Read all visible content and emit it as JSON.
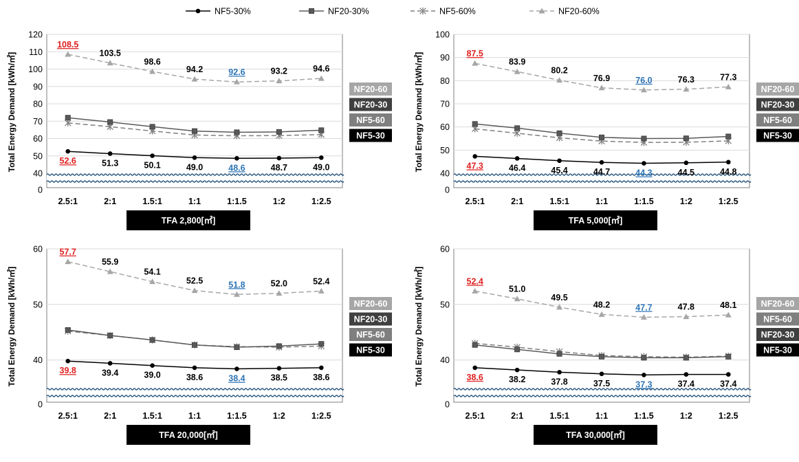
{
  "legend": [
    {
      "name": "NF5-30%",
      "series_key": "NF5-30"
    },
    {
      "name": "NF20-30%",
      "series_key": "NF20-30"
    },
    {
      "name": "NF5-60%",
      "series_key": "NF5-60"
    },
    {
      "name": "NF20-60%",
      "series_key": "NF20-60"
    }
  ],
  "series_styles": {
    "NF5-30": {
      "color": "#000000",
      "marker": "circle",
      "dash": "solid"
    },
    "NF20-30": {
      "color": "#595959",
      "marker": "square",
      "dash": "solid"
    },
    "NF5-60": {
      "color": "#7f7f7f",
      "marker": "asterisk",
      "dash": "dashed"
    },
    "NF20-60": {
      "color": "#a6a6a6",
      "marker": "triangle",
      "dash": "dashed"
    }
  },
  "label_colors": {
    "max": "#e02020",
    "min": "#2e75b6",
    "normal": "#000000"
  },
  "tag_colors": {
    "NF20-60": "#a6a6a6",
    "NF20-30": "#404040",
    "NF5-60": "#7f7f7f",
    "NF5-30": "#000000"
  },
  "chart_data": [
    {
      "type": "line",
      "title": "TFA 2,800[㎡]",
      "ylabel": "Total Energy Demand [kWh/㎡]",
      "categories": [
        "2.5:1",
        "2:1",
        "1.5:1",
        "1:1",
        "1:1.5",
        "1:2",
        "1:2.5"
      ],
      "yticks": [
        40,
        50,
        60,
        70,
        80,
        90,
        100,
        110,
        120
      ],
      "ylim": [
        40,
        120
      ],
      "axis_break_tick": 0,
      "grid": true,
      "side_tags": [
        "NF20-60",
        "NF20-30",
        "NF5-60",
        "NF5-30"
      ],
      "series": [
        {
          "key": "NF5-30",
          "name": "NF5-30%",
          "values": [
            52.6,
            51.3,
            50.1,
            49.0,
            48.6,
            48.7,
            49.0
          ],
          "labels": [
            "52.6",
            "51.3",
            "50.1",
            "49.0",
            "48.6",
            "48.7",
            "49.0"
          ],
          "label_pos": "below"
        },
        {
          "key": "NF20-30",
          "name": "NF20-30%",
          "values": [
            72.0,
            69.5,
            66.8,
            64.3,
            63.6,
            63.8,
            64.8
          ]
        },
        {
          "key": "NF5-60",
          "name": "NF5-60%",
          "values": [
            69.0,
            66.8,
            64.3,
            62.0,
            61.6,
            61.7,
            62.3
          ]
        },
        {
          "key": "NF20-60",
          "name": "NF20-60%",
          "values": [
            108.5,
            103.5,
            98.6,
            94.2,
            92.6,
            93.2,
            94.6
          ],
          "labels": [
            "108.5",
            "103.5",
            "98.6",
            "94.2",
            "92.6",
            "93.2",
            "94.6"
          ],
          "label_pos": "above"
        }
      ]
    },
    {
      "type": "line",
      "title": "TFA 5,000[㎡]",
      "ylabel": "Total Energy Demand [kWh/㎡]",
      "categories": [
        "2.5:1",
        "2:1",
        "1.5:1",
        "1:1",
        "1:1.5",
        "1:2",
        "1:2.5"
      ],
      "yticks": [
        40,
        50,
        60,
        70,
        80,
        90,
        100
      ],
      "ylim": [
        40,
        100
      ],
      "axis_break_tick": 0,
      "grid": true,
      "side_tags": [
        "NF20-60",
        "NF20-30",
        "NF5-60",
        "NF5-30"
      ],
      "series": [
        {
          "key": "NF5-30",
          "name": "NF5-30%",
          "values": [
            47.3,
            46.4,
            45.4,
            44.7,
            44.3,
            44.5,
            44.8
          ],
          "labels": [
            "47.3",
            "46.4",
            "45.4",
            "44.7",
            "44.3",
            "44.5",
            "44.8"
          ],
          "label_pos": "below"
        },
        {
          "key": "NF20-30",
          "name": "NF20-30%",
          "values": [
            61.3,
            59.5,
            57.3,
            55.5,
            55.0,
            55.1,
            55.9
          ]
        },
        {
          "key": "NF5-60",
          "name": "NF5-60%",
          "values": [
            59.2,
            57.3,
            55.3,
            53.9,
            53.3,
            53.4,
            54.0
          ]
        },
        {
          "key": "NF20-60",
          "name": "NF20-60%",
          "values": [
            87.5,
            83.9,
            80.2,
            76.9,
            76.0,
            76.3,
            77.3
          ],
          "labels": [
            "87.5",
            "83.9",
            "80.2",
            "76.9",
            "76.0",
            "76.3",
            "77.3"
          ],
          "label_pos": "above"
        }
      ]
    },
    {
      "type": "line",
      "title": "TFA 20,000[㎡]",
      "ylabel": "Total Energy Demand [kWh/㎡]",
      "categories": [
        "2.5:1",
        "2:1",
        "1.5:1",
        "1:1",
        "1:1.5",
        "1:2",
        "1:2.5"
      ],
      "yticks": [
        40,
        50,
        60
      ],
      "ylim": [
        35,
        60
      ],
      "axis_break_tick": 0,
      "grid": true,
      "side_tags": [
        "NF20-60",
        "NF20-30",
        "NF5-60",
        "NF5-30"
      ],
      "series": [
        {
          "key": "NF5-30",
          "name": "NF5-30%",
          "values": [
            39.8,
            39.4,
            39.0,
            38.6,
            38.4,
            38.5,
            38.6
          ],
          "labels": [
            "39.8",
            "39.4",
            "39.0",
            "38.6",
            "38.4",
            "38.5",
            "38.6"
          ],
          "label_pos": "below"
        },
        {
          "key": "NF20-30",
          "name": "NF20-30%",
          "values": [
            45.4,
            44.4,
            43.6,
            42.7,
            42.3,
            42.5,
            42.9
          ]
        },
        {
          "key": "NF5-60",
          "name": "NF5-60%",
          "values": [
            45.2,
            44.4,
            43.6,
            42.7,
            42.4,
            42.3,
            42.5
          ]
        },
        {
          "key": "NF20-60",
          "name": "NF20-60%",
          "values": [
            57.7,
            55.9,
            54.1,
            52.5,
            51.8,
            52.0,
            52.4
          ],
          "labels": [
            "57.7",
            "55.9",
            "54.1",
            "52.5",
            "51.8",
            "52.0",
            "52.4"
          ],
          "label_pos": "above"
        }
      ]
    },
    {
      "type": "line",
      "title": "TFA 30,000[㎡]",
      "ylabel": "Total Energy Demand [kWh/㎡]",
      "categories": [
        "2.5:1",
        "2:1",
        "1.5:1",
        "1:1",
        "1:1.5",
        "1:2",
        "1:2.5"
      ],
      "yticks": [
        40,
        50,
        60
      ],
      "ylim": [
        35,
        60
      ],
      "axis_break_tick": 0,
      "grid": true,
      "side_tags": [
        "NF20-60",
        "NF5-60",
        "NF20-30",
        "NF5-30"
      ],
      "series": [
        {
          "key": "NF5-30",
          "name": "NF5-30%",
          "values": [
            38.6,
            38.2,
            37.8,
            37.5,
            37.3,
            37.4,
            37.4
          ],
          "labels": [
            "38.6",
            "38.2",
            "37.8",
            "37.5",
            "37.3",
            "37.4",
            "37.4"
          ],
          "label_pos": "below"
        },
        {
          "key": "NF20-30",
          "name": "NF20-30%",
          "values": [
            42.7,
            41.9,
            41.1,
            40.6,
            40.4,
            40.4,
            40.6
          ]
        },
        {
          "key": "NF5-60",
          "name": "NF5-60%",
          "values": [
            43.0,
            42.3,
            41.5,
            40.8,
            40.6,
            40.5,
            40.7
          ]
        },
        {
          "key": "NF20-60",
          "name": "NF20-60%",
          "values": [
            52.4,
            51.0,
            49.5,
            48.2,
            47.7,
            47.8,
            48.1
          ],
          "labels": [
            "52.4",
            "51.0",
            "49.5",
            "48.2",
            "47.7",
            "47.8",
            "48.1"
          ],
          "label_pos": "above"
        }
      ]
    }
  ]
}
